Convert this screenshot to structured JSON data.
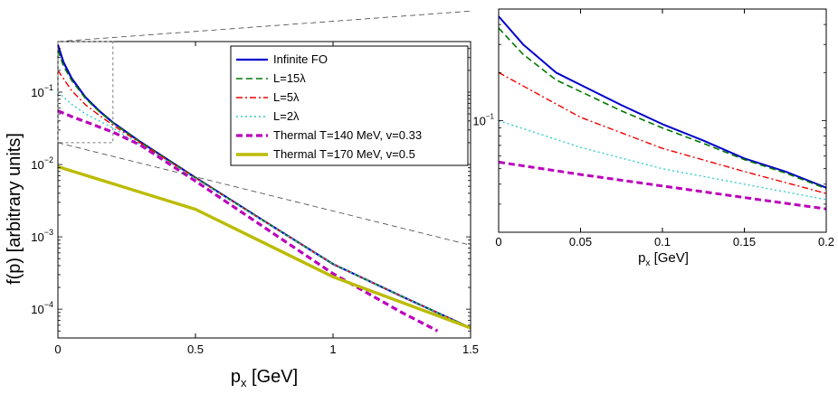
{
  "chart_data": [
    {
      "name": "main",
      "type": "line",
      "xlabel": "p",
      "xlabel_sub": "x",
      "xlabel_units": " [GeV]",
      "ylabel": "f(p) [arbitrary units]",
      "yscale": "log",
      "xlim": [
        0,
        1.5
      ],
      "ylim": [
        4e-05,
        0.5
      ],
      "x_ticks": [
        0,
        0.5,
        1,
        1.5
      ],
      "x_tick_labels": [
        "0",
        "0.5",
        "1",
        "1.5"
      ],
      "y_ticks": [
        0.0001,
        0.001,
        0.01,
        0.1
      ],
      "y_tick_labels": [
        {
          "base": "10",
          "exp": "−4"
        },
        {
          "base": "10",
          "exp": "−3"
        },
        {
          "base": "10",
          "exp": "−2"
        },
        {
          "base": "10",
          "exp": "−1"
        }
      ],
      "legend_position": "top-right",
      "zoom_region": {
        "x": [
          0,
          0.2
        ],
        "y": [
          0.02,
          0.5
        ]
      },
      "series": [
        {
          "name": "Infinite FO",
          "color": "#0000cc",
          "style": "solid",
          "width": 2.2,
          "x": [
            0,
            0.02,
            0.05,
            0.1,
            0.15,
            0.2,
            0.3,
            0.5,
            0.75,
            1.0,
            1.25,
            1.5
          ],
          "y": [
            0.45,
            0.26,
            0.155,
            0.085,
            0.055,
            0.038,
            0.0205,
            0.0066,
            0.00165,
            0.00042,
            0.00015,
            5.5e-05
          ]
        },
        {
          "name": "L=15λ",
          "color": "#007700",
          "style": "dash",
          "width": 1.6,
          "x": [
            0,
            0.02,
            0.05,
            0.1,
            0.15,
            0.2,
            0.3,
            0.5,
            0.75,
            1.0,
            1.25,
            1.5
          ],
          "y": [
            0.38,
            0.23,
            0.145,
            0.082,
            0.054,
            0.0375,
            0.0203,
            0.0066,
            0.00165,
            0.00042,
            0.00015,
            5.5e-05
          ]
        },
        {
          "name": "L=5λ",
          "color": "#ee0000",
          "style": "dashdot",
          "width": 1.4,
          "x": [
            0,
            0.05,
            0.1,
            0.15,
            0.2,
            0.3,
            0.5,
            0.75,
            1.0,
            1.25,
            1.5
          ],
          "y": [
            0.2,
            0.105,
            0.067,
            0.048,
            0.035,
            0.0198,
            0.0065,
            0.00164,
            0.00042,
            0.00015,
            5.5e-05
          ]
        },
        {
          "name": "L=2λ",
          "color": "#33cccc",
          "style": "dot",
          "width": 1.4,
          "x": [
            0,
            0.05,
            0.1,
            0.15,
            0.2,
            0.3,
            0.5,
            0.75,
            1.0,
            1.25,
            1.5
          ],
          "y": [
            0.1,
            0.068,
            0.05,
            0.04,
            0.032,
            0.0188,
            0.0064,
            0.00163,
            0.00042,
            0.00015,
            5.5e-05
          ]
        },
        {
          "name": "Thermal T=140 MeV, v=0.33",
          "color": "#bb00bb",
          "style": "dash",
          "width": 3.2,
          "x": [
            0,
            0.05,
            0.1,
            0.15,
            0.2,
            0.3,
            0.5,
            0.75,
            1.0,
            1.25,
            1.38
          ],
          "y": [
            0.055,
            0.046,
            0.039,
            0.033,
            0.028,
            0.0185,
            0.0059,
            0.00135,
            0.00031,
            9e-05,
            5e-05
          ]
        },
        {
          "name": "Thermal T=170 MeV, v=0.5",
          "color": "#bbbb00",
          "style": "solid",
          "width": 3.4,
          "x": [
            0,
            0.5,
            1.0,
            1.5
          ],
          "y": [
            0.0093,
            0.0024,
            0.00028,
            5.5e-05
          ]
        }
      ]
    },
    {
      "name": "inset",
      "type": "line",
      "xlabel": "p",
      "xlabel_sub": "x",
      "xlabel_units": " [GeV]",
      "yscale": "log",
      "xlim": [
        0,
        0.2
      ],
      "ylim": [
        0.02,
        0.5
      ],
      "x_ticks": [
        0,
        0.05,
        0.1,
        0.15,
        0.2
      ],
      "x_tick_labels": [
        "0",
        "0.05",
        "0.1",
        "0.15",
        "0.2"
      ],
      "y_ticks": [
        0.1
      ],
      "y_tick_labels": [
        {
          "base": "10",
          "exp": "−1"
        }
      ],
      "series": [
        {
          "name": "Infinite FO",
          "color": "#0000cc",
          "style": "solid",
          "width": 2,
          "x": [
            0,
            0.015,
            0.035,
            0.075,
            0.1,
            0.125,
            0.15,
            0.175,
            0.2
          ],
          "y": [
            0.45,
            0.3,
            0.2,
            0.125,
            0.095,
            0.075,
            0.058,
            0.048,
            0.038
          ]
        },
        {
          "name": "L=15λ",
          "color": "#007700",
          "style": "dash",
          "width": 1.6,
          "x": [
            0,
            0.015,
            0.035,
            0.075,
            0.1,
            0.125,
            0.15,
            0.175,
            0.2
          ],
          "y": [
            0.38,
            0.26,
            0.18,
            0.115,
            0.09,
            0.072,
            0.057,
            0.047,
            0.0375
          ]
        },
        {
          "name": "L=5λ",
          "color": "#ee0000",
          "style": "dashdot",
          "width": 1.4,
          "x": [
            0,
            0.05,
            0.1,
            0.15,
            0.2
          ],
          "y": [
            0.2,
            0.105,
            0.067,
            0.048,
            0.035
          ]
        },
        {
          "name": "L=2λ",
          "color": "#33cccc",
          "style": "dot",
          "width": 1.4,
          "x": [
            0,
            0.05,
            0.1,
            0.15,
            0.2
          ],
          "y": [
            0.1,
            0.068,
            0.05,
            0.04,
            0.032
          ]
        },
        {
          "name": "Thermal T=140 MeV, v=0.33",
          "color": "#bb00bb",
          "style": "dash",
          "width": 3,
          "x": [
            0,
            0.05,
            0.1,
            0.15,
            0.2
          ],
          "y": [
            0.055,
            0.046,
            0.039,
            0.033,
            0.028
          ]
        }
      ]
    }
  ]
}
